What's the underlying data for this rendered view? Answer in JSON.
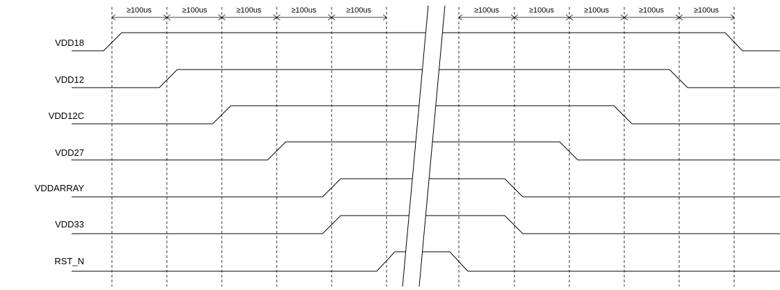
{
  "title": "",
  "signals": [
    {
      "label": "VDD18"
    },
    {
      "label": "VDD12"
    },
    {
      "label": "VDD12C"
    },
    {
      "label": "VDD27"
    },
    {
      "label": "VDDARRAY"
    },
    {
      "label": "VDD33"
    },
    {
      "label": "RST_N"
    }
  ],
  "intervals_left": [
    "≥100us",
    "≥100us",
    "≥100us",
    "≥100us",
    "≥100us"
  ],
  "intervals_right": [
    "≥100us",
    "≥100us",
    "≥100us",
    "≥100us",
    "≥100us"
  ]
}
